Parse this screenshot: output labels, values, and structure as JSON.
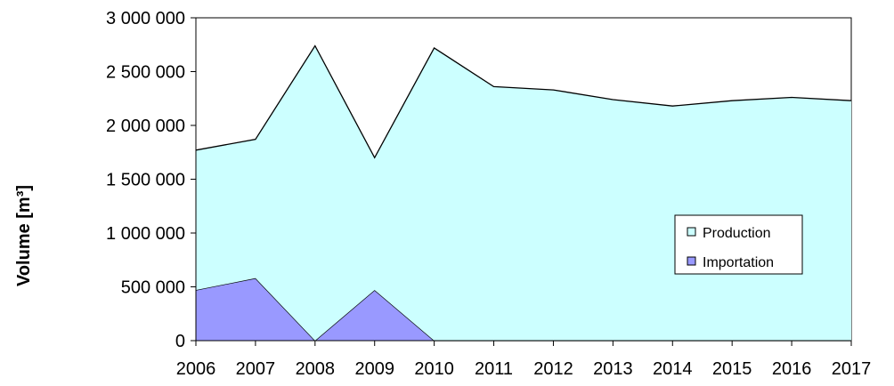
{
  "chart_data": {
    "type": "area",
    "stacked": true,
    "title": "",
    "xlabel": "",
    "ylabel": "Volume [m³]",
    "x": [
      "2006",
      "2007",
      "2008",
      "2009",
      "2010",
      "2011",
      "2012",
      "2013",
      "2014",
      "2015",
      "2016",
      "2017"
    ],
    "ylim": [
      0,
      3000000
    ],
    "yticks": [
      0,
      500000,
      1000000,
      1500000,
      2000000,
      2500000,
      3000000
    ],
    "ytick_labels": [
      "0",
      "500 000",
      "1 000 000",
      "1 500 000",
      "2 000 000",
      "2 500 000",
      "3 000 000"
    ],
    "series": [
      {
        "name": "Importation",
        "color": "#9999ff",
        "values": [
          470000,
          580000,
          0,
          470000,
          0,
          0,
          0,
          0,
          0,
          0,
          0,
          0
        ]
      },
      {
        "name": "Production",
        "color": "#ccffff",
        "values": [
          1300000,
          1290000,
          2740000,
          1230000,
          2720000,
          2360000,
          2330000,
          2240000,
          2180000,
          2230000,
          2260000,
          2230000
        ]
      }
    ],
    "grid": false,
    "legend_position": "right",
    "legend_entries": [
      "Production",
      "Importation"
    ]
  }
}
